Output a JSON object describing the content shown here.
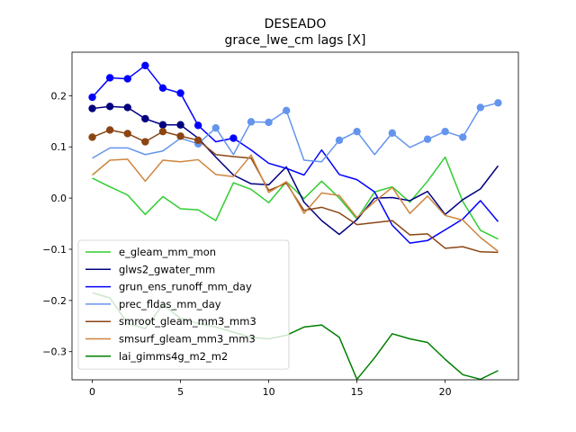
{
  "chart_data": {
    "type": "line",
    "title": "DESEADO",
    "subtitle": "grace_lwe_cm lags [X]",
    "xlabel": "",
    "ylabel": "",
    "xlim": [
      -1.15,
      24.15
    ],
    "ylim": [
      -0.355,
      0.285
    ],
    "xticks": [
      0,
      5,
      10,
      15,
      20
    ],
    "yticks": [
      -0.3,
      -0.2,
      -0.1,
      0.0,
      0.1,
      0.2
    ],
    "ytick_labels": [
      "−0.3",
      "−0.2",
      "−0.1",
      "0.0",
      "0.1",
      "0.2"
    ],
    "grid": false,
    "legend_position": "lower-left",
    "x": [
      0,
      1,
      2,
      3,
      4,
      5,
      6,
      7,
      8,
      9,
      10,
      11,
      12,
      13,
      14,
      15,
      16,
      17,
      18,
      19,
      20,
      21,
      22,
      23
    ],
    "series": [
      {
        "name": "e_gleam_mm_mon",
        "color": "#32cd32",
        "marker_indices": [],
        "values": [
          0.039,
          0.022,
          0.006,
          -0.032,
          0.003,
          -0.021,
          -0.023,
          -0.044,
          0.03,
          0.017,
          -0.009,
          0.032,
          -0.001,
          0.033,
          0.0,
          -0.041,
          0.012,
          0.022,
          -0.008,
          0.033,
          0.08,
          -0.007,
          -0.063,
          -0.08
        ]
      },
      {
        "name": "glws2_gwater_mm",
        "color": "#000080",
        "marker_indices": [
          0,
          1,
          2,
          3,
          4,
          5
        ],
        "values": [
          0.175,
          0.179,
          0.177,
          0.155,
          0.143,
          0.143,
          0.117,
          0.08,
          0.045,
          0.028,
          0.026,
          0.061,
          -0.008,
          -0.044,
          -0.071,
          -0.042,
          0.0,
          0.001,
          -0.005,
          0.013,
          -0.032,
          -0.003,
          0.018,
          0.063
        ]
      },
      {
        "name": "grun_ens_runoff_mm_day",
        "color": "#0000ff",
        "marker_indices": [
          0,
          1,
          2,
          3,
          4,
          5,
          6,
          8
        ],
        "values": [
          0.197,
          0.235,
          0.233,
          0.259,
          0.215,
          0.205,
          0.142,
          0.11,
          0.117,
          0.094,
          0.068,
          0.058,
          0.045,
          0.094,
          0.046,
          0.036,
          0.012,
          -0.053,
          -0.088,
          -0.083,
          -0.062,
          -0.041,
          -0.005,
          -0.046
        ]
      },
      {
        "name": "prec_fldas_mm_day",
        "color": "#6495ed",
        "marker_indices": [
          6,
          7,
          9,
          10,
          11,
          14,
          15,
          17,
          19,
          20,
          21,
          22,
          23
        ],
        "values": [
          0.078,
          0.098,
          0.098,
          0.085,
          0.092,
          0.117,
          0.106,
          0.137,
          0.085,
          0.149,
          0.148,
          0.171,
          0.074,
          0.071,
          0.113,
          0.13,
          0.085,
          0.127,
          0.099,
          0.115,
          0.13,
          0.119,
          0.177,
          0.186
        ]
      },
      {
        "name": "smroot_gleam_mm3_mm3",
        "color": "#8b4513",
        "marker_indices": [
          0,
          1,
          2,
          3,
          4,
          5,
          6
        ],
        "values": [
          0.119,
          0.133,
          0.126,
          0.11,
          0.13,
          0.121,
          0.113,
          0.085,
          0.081,
          0.078,
          0.015,
          0.029,
          -0.024,
          -0.018,
          -0.029,
          -0.052,
          -0.048,
          -0.044,
          -0.072,
          -0.07,
          -0.098,
          -0.095,
          -0.105,
          -0.106
        ]
      },
      {
        "name": "smsurf_gleam_mm3_mm3",
        "color": "#cd853f",
        "marker_indices": [],
        "values": [
          0.045,
          0.074,
          0.076,
          0.033,
          0.074,
          0.071,
          0.075,
          0.046,
          0.042,
          0.084,
          0.011,
          0.032,
          -0.03,
          0.01,
          0.005,
          -0.038,
          -0.007,
          0.021,
          -0.03,
          0.004,
          -0.034,
          -0.043,
          -0.077,
          -0.104
        ]
      },
      {
        "name": "lai_gimms4g_m2_m2",
        "color": "#008000",
        "marker_indices": [],
        "values": [
          -0.185,
          -0.195,
          -0.245,
          -0.255,
          -0.208,
          -0.235,
          -0.245,
          -0.252,
          -0.262,
          -0.272,
          -0.275,
          -0.268,
          -0.252,
          -0.248,
          -0.272,
          -0.354,
          -0.312,
          -0.265,
          -0.275,
          -0.282,
          -0.315,
          -0.345,
          -0.354,
          -0.337
        ]
      }
    ]
  }
}
